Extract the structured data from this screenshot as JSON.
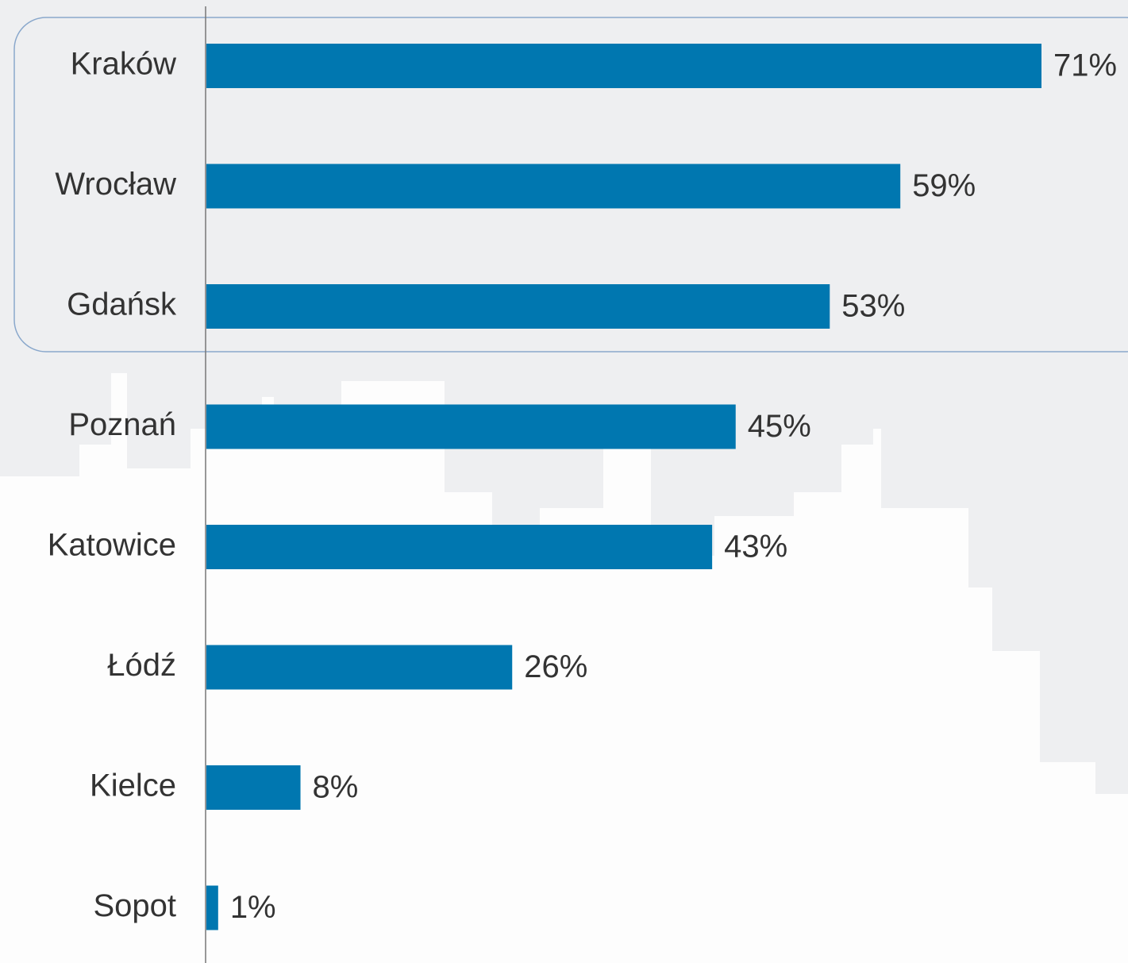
{
  "chart_data": {
    "type": "bar",
    "orientation": "horizontal",
    "categories": [
      "Kraków",
      "Wrocław",
      "Gdańsk",
      "Poznań",
      "Katowice",
      "Łódź",
      "Kielce",
      "Sopot"
    ],
    "values": [
      71,
      59,
      53,
      45,
      43,
      26,
      8,
      1
    ],
    "value_labels": [
      "71%",
      "59%",
      "53%",
      "45%",
      "43%",
      "26%",
      "8%",
      "1%"
    ],
    "color": "#0077b0"
  }
}
